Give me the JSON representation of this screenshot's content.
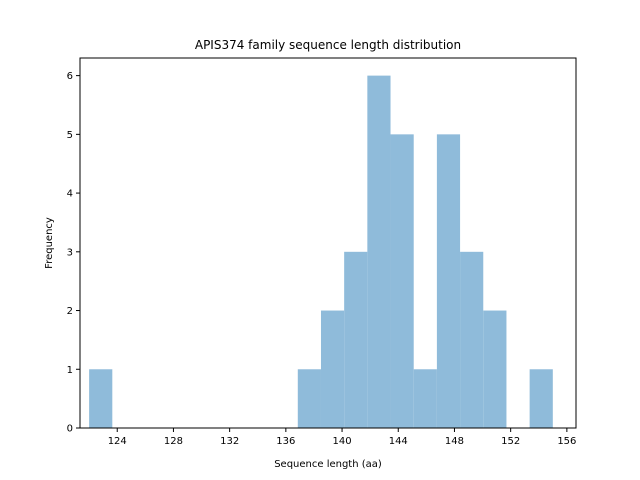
{
  "chart_data": {
    "type": "bar",
    "title": "APIS374 family sequence length distribution",
    "xlabel": "Sequence length (aa)",
    "ylabel": "Frequency",
    "xlim": [
      121.35,
      156.65
    ],
    "ylim": [
      0,
      6.3
    ],
    "xticks": [
      124,
      128,
      132,
      136,
      140,
      144,
      148,
      152,
      156
    ],
    "yticks": [
      0,
      1,
      2,
      3,
      4,
      5,
      6
    ],
    "bin_edges": [
      122,
      123.65,
      125.3,
      126.95,
      128.6,
      130.25,
      131.9,
      133.55,
      135.2,
      136.85,
      138.5,
      140.15,
      141.8,
      143.45,
      145.1,
      146.75,
      148.4,
      150.05,
      151.7,
      153.35,
      155
    ],
    "counts": [
      1,
      0,
      0,
      0,
      0,
      0,
      0,
      0,
      0,
      1,
      2,
      3,
      6,
      5,
      1,
      5,
      3,
      2,
      0,
      1
    ],
    "bar_color": "#8fbbda",
    "grid": false,
    "legend": "none"
  }
}
